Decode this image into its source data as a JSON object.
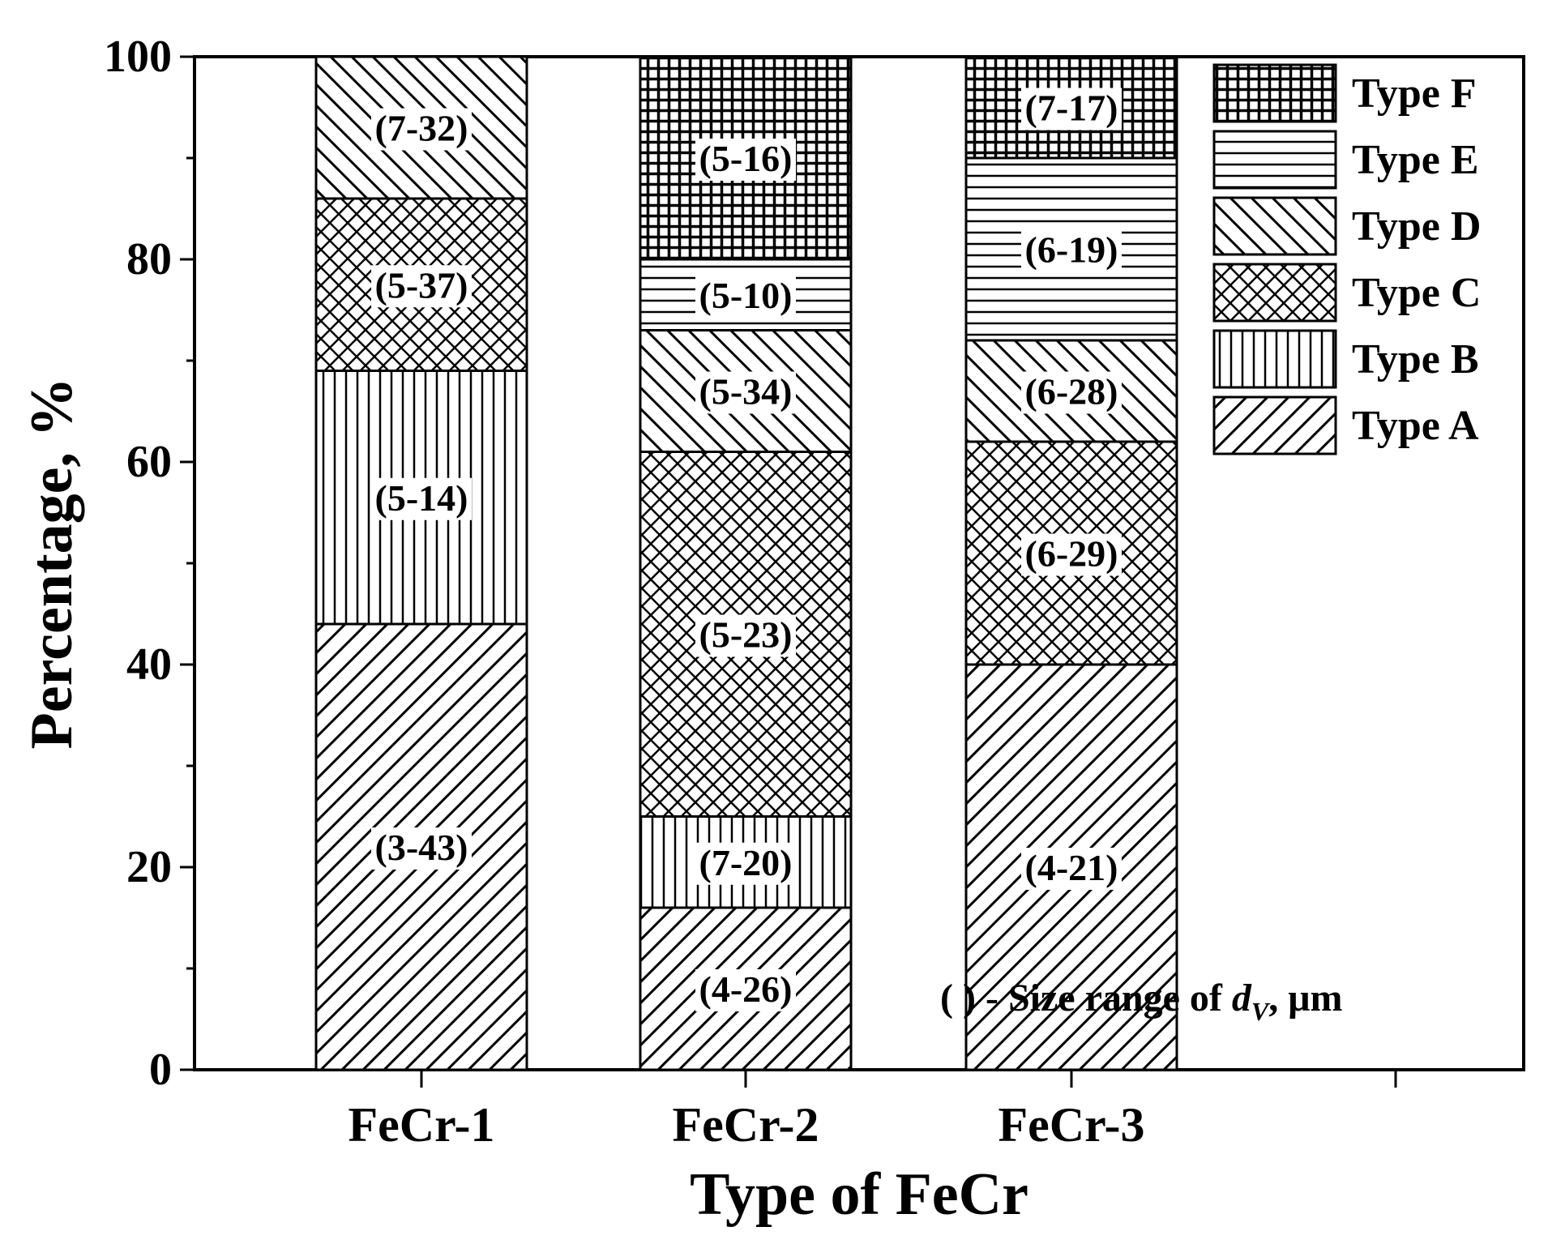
{
  "chart_data": {
    "type": "bar",
    "stacked": true,
    "categories": [
      "FeCr-1",
      "FeCr-2",
      "FeCr-3"
    ],
    "xlabel": "Type of FeCr",
    "ylabel": "Percentage, %",
    "ylim": [
      0,
      100
    ],
    "yticks": [
      "0",
      "20",
      "40",
      "60",
      "80",
      "100"
    ],
    "legend_position": "top-right",
    "series": [
      {
        "name": "Type A",
        "pattern": "diag-up",
        "values": [
          44,
          16,
          40
        ],
        "labels": [
          "(3-43)",
          "(4-26)",
          "(4-21)"
        ]
      },
      {
        "name": "Type B",
        "pattern": "vertical",
        "values": [
          25,
          9,
          0
        ],
        "labels": [
          "(5-14)",
          "(7-20)",
          ""
        ]
      },
      {
        "name": "Type C",
        "pattern": "crosshatch",
        "values": [
          17,
          36,
          22
        ],
        "labels": [
          "(5-37)",
          "(5-23)",
          "(6-29)"
        ]
      },
      {
        "name": "Type D",
        "pattern": "diag-down",
        "values": [
          14,
          12,
          10
        ],
        "labels": [
          "(7-32)",
          "(5-34)",
          "(6-28)"
        ]
      },
      {
        "name": "Type E",
        "pattern": "horizontal",
        "values": [
          0,
          7,
          18
        ],
        "labels": [
          "",
          "(5-10)",
          "(6-19)"
        ]
      },
      {
        "name": "Type F",
        "pattern": "grid",
        "values": [
          0,
          20,
          10
        ],
        "labels": [
          "",
          "(5-16)",
          "(7-17)"
        ]
      }
    ],
    "annotation": {
      "prefix": "( ) - Size range of ",
      "var": "d",
      "sub": "V",
      "suffix": ", μm"
    }
  }
}
